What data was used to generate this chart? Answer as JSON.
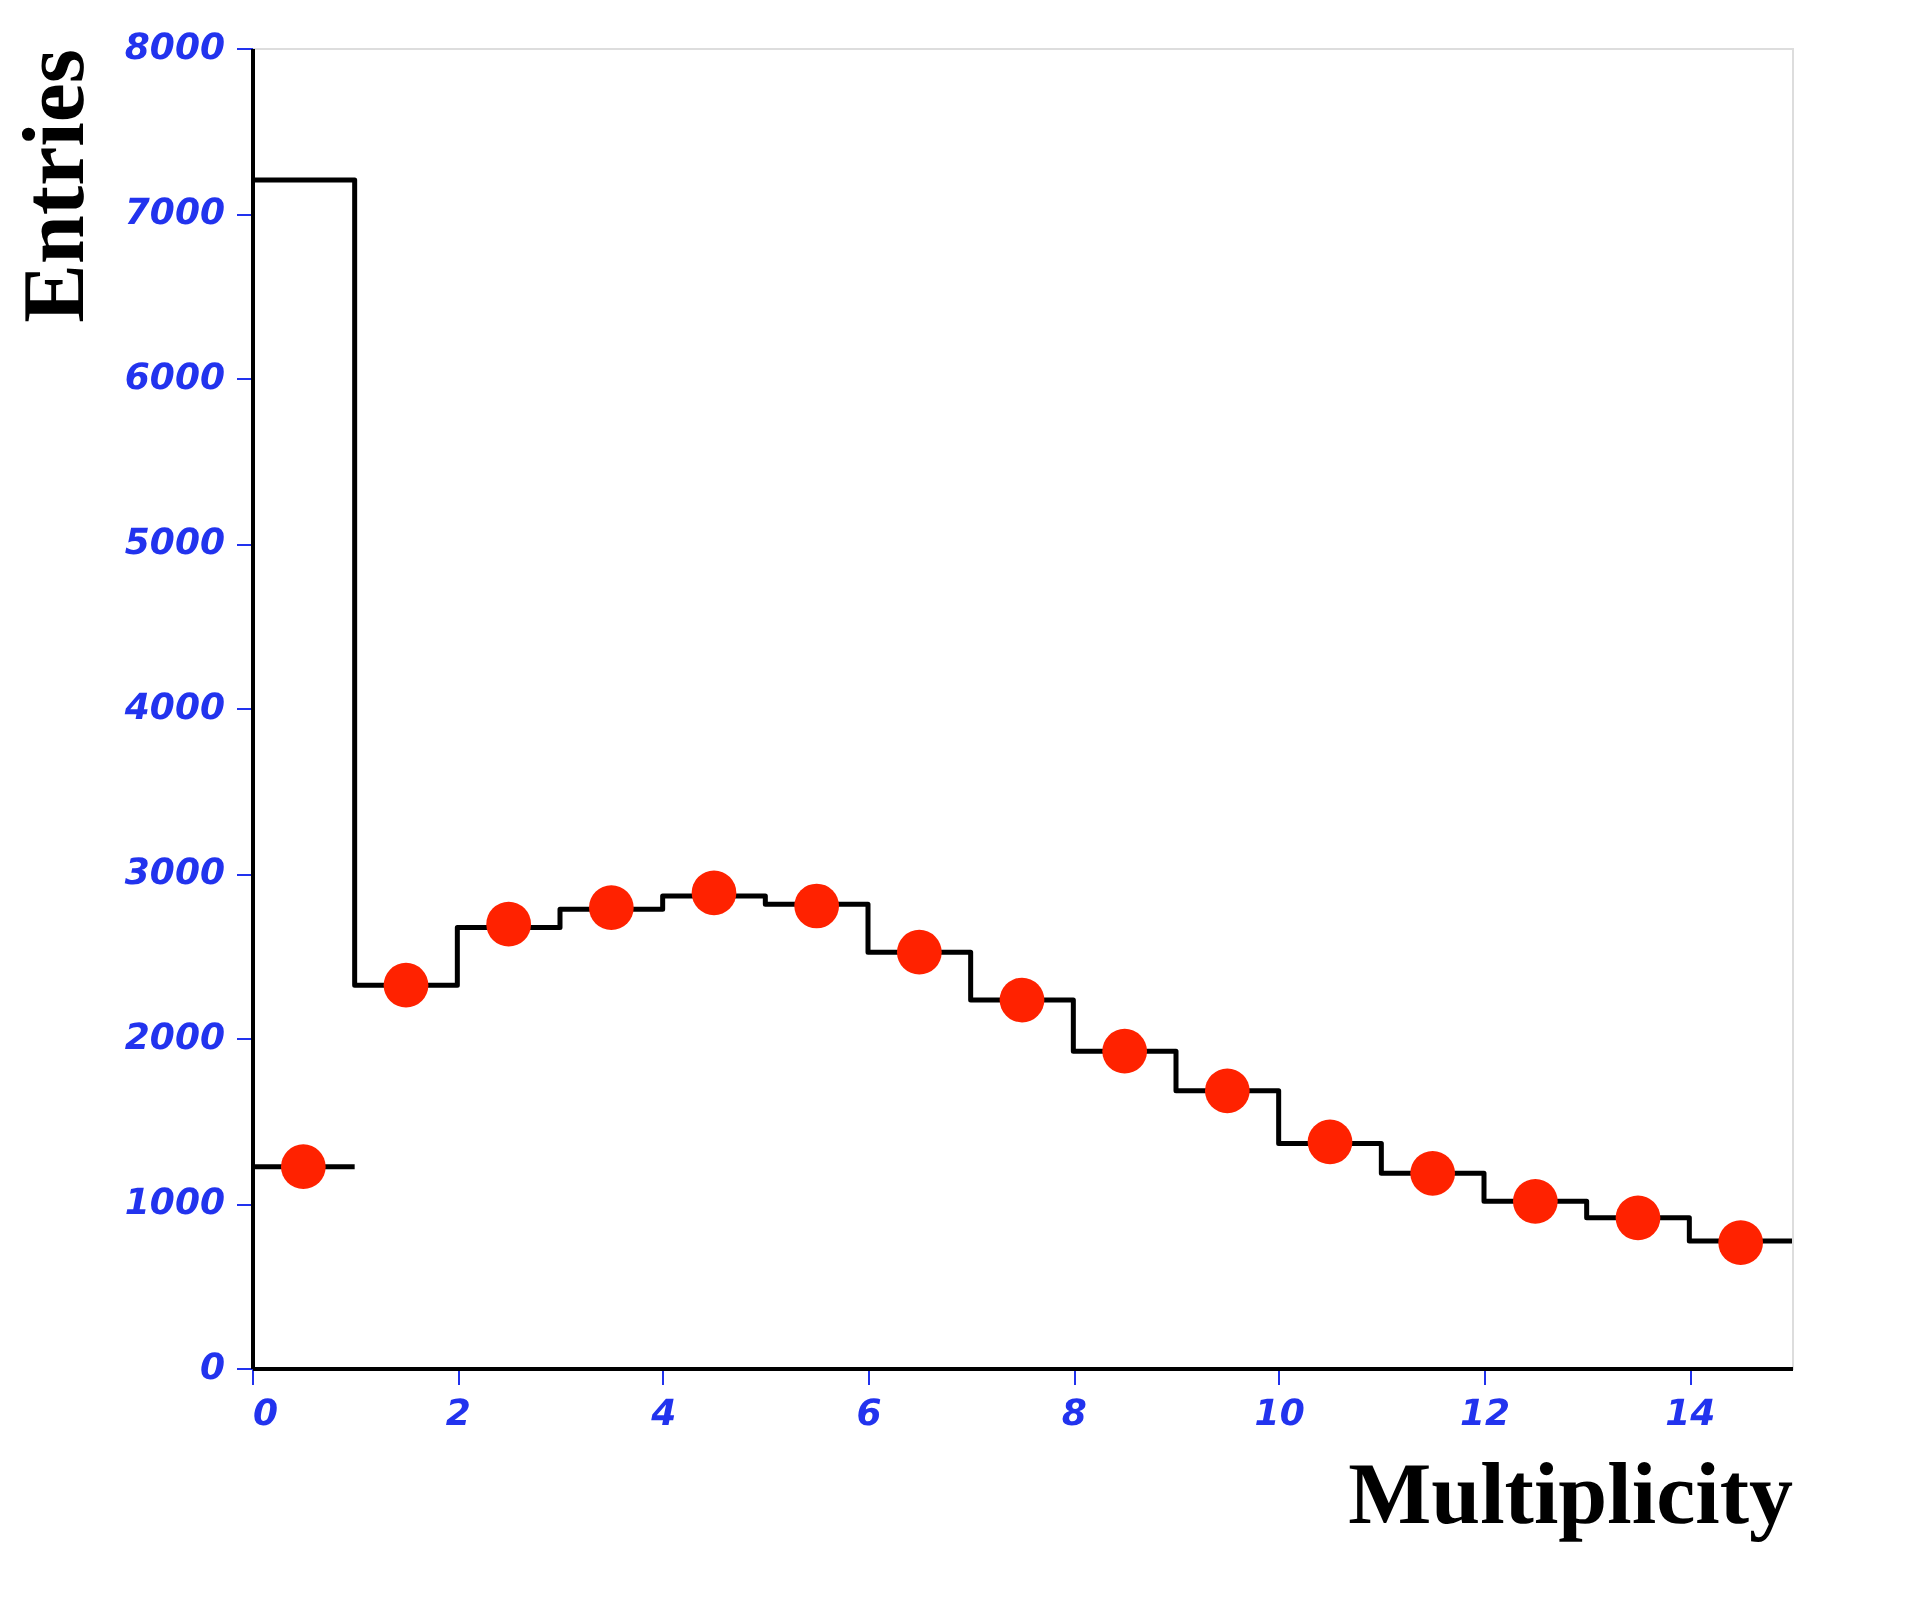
{
  "chart_data": {
    "type": "histogram",
    "xlabel": "Multiplicity",
    "ylabel": "Entries",
    "bins": [
      0,
      1,
      2,
      3,
      4,
      5,
      6,
      7,
      8,
      9,
      10,
      11,
      12,
      13,
      14,
      15
    ],
    "series": [
      {
        "color": "#000000",
        "values": [
          7200,
          2320,
          2670,
          2780,
          2860,
          2810,
          2520,
          2230,
          1920,
          1680,
          1360,
          1180,
          1010,
          910,
          770
        ]
      },
      {
        "type": "step",
        "color": "#000000",
        "x": [
          0,
          1
        ],
        "values": [
          1220,
          1220
        ]
      },
      {
        "type": "scatter",
        "color": "#ff2200",
        "marker": "circle",
        "x": [
          0.5,
          1.5,
          2.5,
          3.5,
          4.5,
          5.5,
          6.5,
          7.5,
          8.5,
          9.5,
          10.5,
          11.5,
          12.5,
          13.5,
          14.5
        ],
        "values": [
          1220,
          2320,
          2690,
          2790,
          2880,
          2800,
          2520,
          2230,
          1920,
          1680,
          1370,
          1180,
          1010,
          910,
          760
        ]
      }
    ],
    "xlim": [
      0,
      15
    ],
    "xticks": [
      0,
      2,
      4,
      6,
      8,
      10,
      12,
      14
    ],
    "ylim": [
      0,
      8000
    ],
    "yticks": [
      0,
      1000,
      2000,
      3000,
      4000,
      5000,
      6000,
      7000,
      8000
    ],
    "grid": false
  }
}
